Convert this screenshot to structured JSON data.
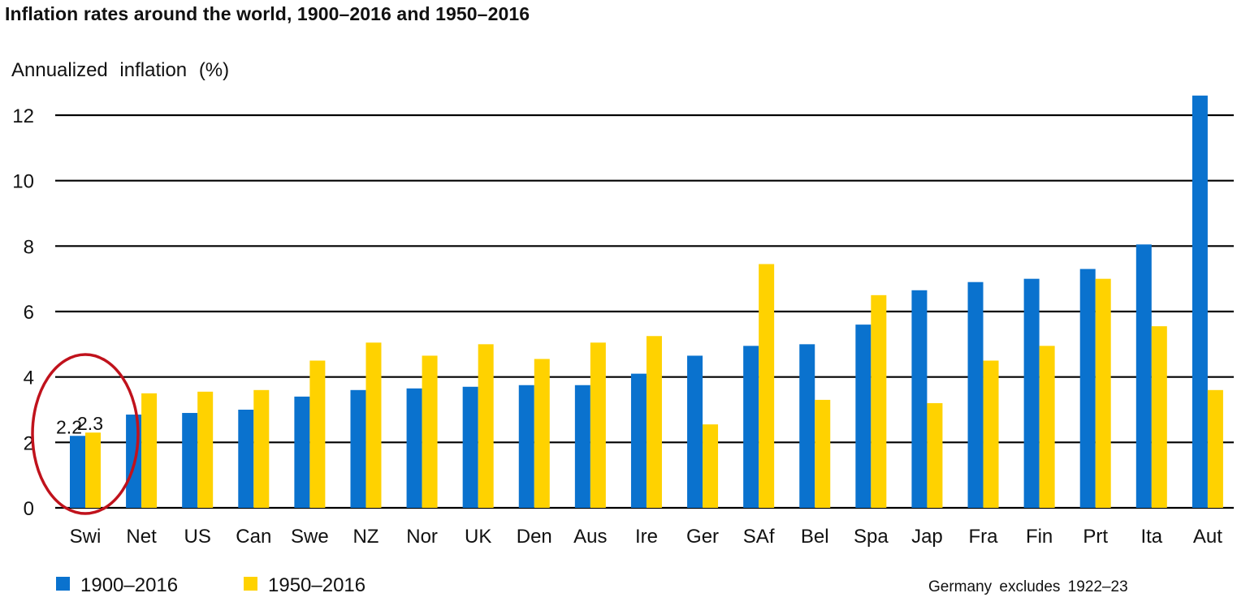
{
  "chart_data": {
    "type": "bar",
    "title": "Inflation rates around the world, 1900–2016 and 1950–2016",
    "ylabel": "Annualized  inflation  (%)",
    "xlabel": "",
    "ylim": [
      0,
      12
    ],
    "yticks": [
      "0",
      "2",
      "4",
      "6",
      "8",
      "10",
      "12"
    ],
    "grid": true,
    "legend_position": "bottom-left",
    "note": "Germany  excludes  1922–23",
    "categories": [
      "Swi",
      "Net",
      "US",
      "Can",
      "Swe",
      "NZ",
      "Nor",
      "UK",
      "Den",
      "Aus",
      "Ire",
      "Ger",
      "SAf",
      "Bel",
      "Spa",
      "Jap",
      "Fra",
      "Fin",
      "Prt",
      "Ita",
      "Aut"
    ],
    "series": [
      {
        "name": "1900–2016",
        "color": "#0A72CE",
        "values": [
          2.2,
          2.85,
          2.9,
          3.0,
          3.4,
          3.6,
          3.65,
          3.7,
          3.75,
          3.75,
          4.1,
          4.65,
          4.95,
          5.0,
          5.6,
          6.65,
          6.9,
          7.0,
          7.3,
          8.05,
          12.6
        ]
      },
      {
        "name": "1950–2016",
        "color": "#FFD200",
        "values": [
          2.3,
          3.5,
          3.55,
          3.6,
          4.5,
          5.05,
          4.65,
          5.0,
          4.55,
          5.05,
          5.25,
          2.55,
          7.45,
          3.3,
          6.5,
          3.2,
          4.5,
          4.95,
          7.0,
          5.55,
          3.6
        ]
      }
    ],
    "annotations": [
      {
        "category": "Swi",
        "series": "1900–2016",
        "text": "2.2"
      },
      {
        "category": "Swi",
        "series": "1950–2016",
        "text": "2.3"
      }
    ],
    "highlight": {
      "category": "Swi",
      "shape": "ellipse",
      "color": "#C0121C"
    }
  }
}
